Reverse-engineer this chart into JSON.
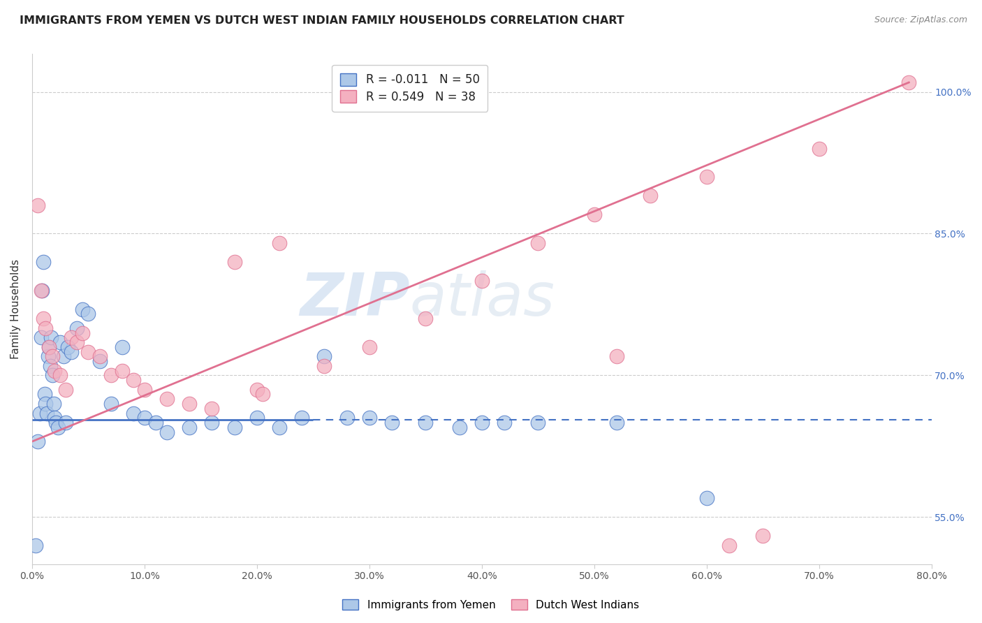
{
  "title": "IMMIGRANTS FROM YEMEN VS DUTCH WEST INDIAN FAMILY HOUSEHOLDS CORRELATION CHART",
  "source": "Source: ZipAtlas.com",
  "ylabel": "Family Households",
  "xlim": [
    0.0,
    80.0
  ],
  "ylim": [
    50.0,
    104.0
  ],
  "yticks": [
    55.0,
    70.0,
    85.0,
    100.0
  ],
  "xticks": [
    0.0,
    10.0,
    20.0,
    30.0,
    40.0,
    50.0,
    60.0,
    70.0,
    80.0
  ],
  "legend1_label": "R = -0.011   N = 50",
  "legend2_label": "R = 0.549   N = 38",
  "series1_color": "#adc8e8",
  "series2_color": "#f4b0c0",
  "line1_color": "#4472c4",
  "line2_color": "#e07090",
  "watermark": "ZIPatlas",
  "blue_x": [
    0.3,
    0.5,
    0.7,
    0.8,
    0.9,
    1.0,
    1.1,
    1.2,
    1.3,
    1.4,
    1.5,
    1.6,
    1.7,
    1.8,
    1.9,
    2.0,
    2.1,
    2.3,
    2.5,
    2.8,
    3.0,
    3.2,
    3.5,
    4.0,
    4.5,
    5.0,
    6.0,
    7.0,
    8.0,
    9.0,
    10.0,
    11.0,
    12.0,
    14.0,
    16.0,
    18.0,
    20.0,
    22.0,
    24.0,
    26.0,
    28.0,
    30.0,
    32.0,
    35.0,
    38.0,
    40.0,
    42.0,
    45.0,
    52.0,
    60.0
  ],
  "blue_y": [
    52.0,
    63.0,
    66.0,
    74.0,
    79.0,
    82.0,
    68.0,
    67.0,
    66.0,
    72.0,
    73.0,
    71.0,
    74.0,
    70.0,
    67.0,
    65.5,
    65.0,
    64.5,
    73.5,
    72.0,
    65.0,
    73.0,
    72.5,
    75.0,
    77.0,
    76.5,
    71.5,
    67.0,
    73.0,
    66.0,
    65.5,
    65.0,
    64.0,
    64.5,
    65.0,
    64.5,
    65.5,
    64.5,
    65.5,
    72.0,
    65.5,
    65.5,
    65.0,
    65.0,
    64.5,
    65.0,
    65.0,
    65.0,
    65.0,
    57.0
  ],
  "pink_x": [
    0.5,
    0.8,
    1.0,
    1.2,
    1.5,
    1.8,
    2.0,
    2.5,
    3.0,
    3.5,
    4.0,
    4.5,
    5.0,
    6.0,
    7.0,
    8.0,
    9.0,
    10.0,
    12.0,
    14.0,
    16.0,
    18.0,
    22.0,
    26.0,
    30.0,
    35.0,
    40.0,
    45.0,
    50.0,
    55.0,
    60.0,
    65.0,
    70.0,
    78.0,
    20.0,
    20.5,
    52.0,
    62.0
  ],
  "pink_y": [
    88.0,
    79.0,
    76.0,
    75.0,
    73.0,
    72.0,
    70.5,
    70.0,
    68.5,
    74.0,
    73.5,
    74.5,
    72.5,
    72.0,
    70.0,
    70.5,
    69.5,
    68.5,
    67.5,
    67.0,
    66.5,
    82.0,
    84.0,
    71.0,
    73.0,
    76.0,
    80.0,
    84.0,
    87.0,
    89.0,
    91.0,
    53.0,
    94.0,
    101.0,
    68.5,
    68.0,
    72.0,
    52.0
  ],
  "blue_line_solid_end": 25.0,
  "blue_line_y": 65.3,
  "pink_line_x0": 0.0,
  "pink_line_y0": 63.0,
  "pink_line_x1": 78.0,
  "pink_line_y1": 101.0
}
